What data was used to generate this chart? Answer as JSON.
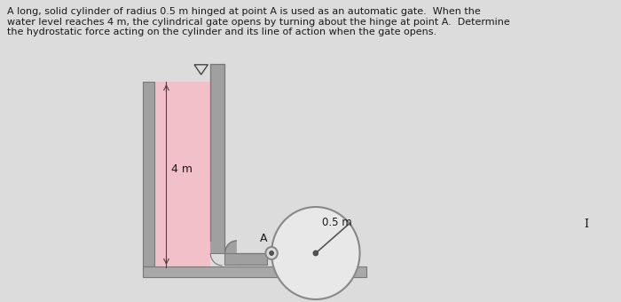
{
  "background_color": "#dcdcdc",
  "text_color": "#1a1a1a",
  "problem_text": "A long, solid cylinder of radius 0.5 m hinged at point A is used as an automatic gate.  When the\nwater level reaches 4 m, the cylindrical gate opens by turning about the hinge at point A.  Determine\nthe hydrostatic force acting on the cylinder and its line of action when the gate opens.",
  "water_color": "#f2c0c8",
  "wall_color": "#a0a0a0",
  "wall_edge": "#787878",
  "cylinder_fill": "#e8e8e8",
  "cylinder_edge": "#888888",
  "floor_color": "#a8a8a8",
  "label_4m": "4 m",
  "label_radius": "0.5 m",
  "label_A": "A",
  "label_cursor": "I",
  "dim_line_color": "#444444",
  "nabla_color": "#444444"
}
